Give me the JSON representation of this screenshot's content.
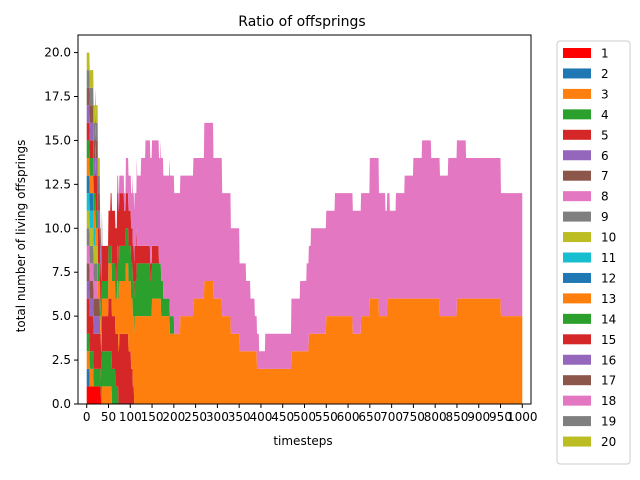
{
  "chart_data": {
    "type": "area",
    "title": "Ratio of offsprings",
    "xlabel": "timesteps",
    "ylabel": "total number of living offsprings",
    "xlim": [
      -20,
      1020
    ],
    "ylim": [
      0,
      21
    ],
    "xticks": [
      0,
      50,
      100,
      150,
      200,
      250,
      300,
      350,
      400,
      450,
      500,
      550,
      600,
      650,
      700,
      750,
      800,
      850,
      900,
      950,
      1000
    ],
    "xtick_labels": [
      "0",
      "50",
      "100",
      "150",
      "200",
      "250",
      "300",
      "350",
      "400",
      "450",
      "500",
      "550",
      "600",
      "650",
      "700",
      "750",
      "800",
      "850",
      "900",
      "950",
      "1000"
    ],
    "yticks": [
      0,
      2.5,
      5,
      7.5,
      10,
      12.5,
      15,
      17.5,
      20
    ],
    "ytick_labels": [
      "0.0",
      "2.5",
      "5.0",
      "7.5",
      "10.0",
      "12.5",
      "15.0",
      "17.5",
      "20.0"
    ],
    "legend_position": "outside right",
    "grid": false,
    "series": [
      {
        "name": "1",
        "color": "#ff0000",
        "points": [
          [
            0,
            1
          ],
          [
            30,
            1
          ],
          [
            35,
            0
          ],
          [
            1000,
            0
          ]
        ]
      },
      {
        "name": "2",
        "color": "#1f77b4",
        "points": [
          [
            0,
            1
          ],
          [
            5,
            1
          ],
          [
            8,
            0
          ],
          [
            1000,
            0
          ]
        ]
      },
      {
        "name": "3",
        "color": "#ff7f0e",
        "points": [
          [
            0,
            1
          ],
          [
            10,
            1
          ],
          [
            20,
            0
          ],
          [
            30,
            0
          ],
          [
            40,
            1
          ],
          [
            55,
            1
          ],
          [
            60,
            0
          ],
          [
            1000,
            0
          ]
        ]
      },
      {
        "name": "4",
        "color": "#2ca02c",
        "points": [
          [
            0,
            1
          ],
          [
            8,
            1
          ],
          [
            30,
            1
          ],
          [
            40,
            2
          ],
          [
            60,
            2
          ],
          [
            70,
            1
          ],
          [
            75,
            0
          ],
          [
            1000,
            0
          ]
        ]
      },
      {
        "name": "5",
        "color": "#d62728",
        "points": [
          [
            0,
            2
          ],
          [
            30,
            2
          ],
          [
            40,
            2
          ],
          [
            60,
            3
          ],
          [
            90,
            4
          ],
          [
            100,
            3
          ],
          [
            110,
            0
          ],
          [
            1000,
            0
          ]
        ]
      },
      {
        "name": "6",
        "color": "#9467bd",
        "points": [
          [
            0,
            1
          ],
          [
            25,
            1
          ],
          [
            35,
            0
          ],
          [
            1000,
            0
          ]
        ]
      },
      {
        "name": "7",
        "color": "#8c564b",
        "points": [
          [
            0,
            1
          ],
          [
            25,
            1
          ],
          [
            35,
            0
          ],
          [
            1000,
            0
          ]
        ]
      },
      {
        "name": "8",
        "color": "#e377c2",
        "points": [
          [
            0,
            1
          ],
          [
            20,
            1
          ],
          [
            30,
            0
          ],
          [
            1000,
            0
          ]
        ]
      },
      {
        "name": "9",
        "color": "#7f7f7f",
        "points": [
          [
            0,
            1
          ],
          [
            20,
            1
          ],
          [
            30,
            0
          ],
          [
            1000,
            0
          ]
        ]
      },
      {
        "name": "10",
        "color": "#bcbd22",
        "points": [
          [
            0,
            1
          ],
          [
            20,
            1
          ],
          [
            30,
            0
          ],
          [
            1000,
            0
          ]
        ]
      },
      {
        "name": "11",
        "color": "#17becf",
        "points": [
          [
            0,
            1
          ],
          [
            15,
            1
          ],
          [
            25,
            0
          ],
          [
            1000,
            0
          ]
        ]
      },
      {
        "name": "12",
        "color": "#1f77b4",
        "points": [
          [
            0,
            1
          ],
          [
            10,
            1
          ],
          [
            20,
            0
          ],
          [
            1000,
            0
          ]
        ]
      },
      {
        "name": "13",
        "color": "#ff7f0e",
        "points": [
          [
            0,
            1
          ],
          [
            40,
            1
          ],
          [
            60,
            2
          ],
          [
            80,
            3
          ],
          [
            100,
            4
          ],
          [
            120,
            5
          ],
          [
            140,
            5
          ],
          [
            160,
            6
          ],
          [
            180,
            5
          ],
          [
            200,
            4
          ],
          [
            230,
            5
          ],
          [
            260,
            6
          ],
          [
            280,
            7
          ],
          [
            300,
            6
          ],
          [
            320,
            5
          ],
          [
            340,
            4
          ],
          [
            360,
            3
          ],
          [
            380,
            3
          ],
          [
            400,
            2
          ],
          [
            420,
            2
          ],
          [
            440,
            2
          ],
          [
            460,
            2
          ],
          [
            480,
            3
          ],
          [
            500,
            3
          ],
          [
            520,
            4
          ],
          [
            540,
            4
          ],
          [
            560,
            5
          ],
          [
            580,
            5
          ],
          [
            600,
            5
          ],
          [
            620,
            4
          ],
          [
            640,
            5
          ],
          [
            660,
            6
          ],
          [
            680,
            5
          ],
          [
            700,
            6
          ],
          [
            720,
            6
          ],
          [
            740,
            6
          ],
          [
            760,
            6
          ],
          [
            780,
            6
          ],
          [
            800,
            6
          ],
          [
            820,
            5
          ],
          [
            840,
            5
          ],
          [
            860,
            6
          ],
          [
            880,
            6
          ],
          [
            900,
            6
          ],
          [
            920,
            6
          ],
          [
            940,
            6
          ],
          [
            960,
            5
          ],
          [
            980,
            5
          ],
          [
            1000,
            5
          ]
        ]
      },
      {
        "name": "14",
        "color": "#2ca02c",
        "points": [
          [
            0,
            1
          ],
          [
            40,
            1
          ],
          [
            60,
            1
          ],
          [
            80,
            2
          ],
          [
            100,
            2
          ],
          [
            130,
            3
          ],
          [
            160,
            2
          ],
          [
            190,
            1
          ],
          [
            210,
            0
          ],
          [
            1000,
            0
          ]
        ]
      },
      {
        "name": "15",
        "color": "#d62728",
        "points": [
          [
            0,
            1
          ],
          [
            40,
            2
          ],
          [
            70,
            3
          ],
          [
            100,
            2
          ],
          [
            130,
            1
          ],
          [
            160,
            1
          ],
          [
            170,
            0
          ],
          [
            1000,
            0
          ]
        ]
      },
      {
        "name": "16",
        "color": "#9467bd",
        "points": [
          [
            0,
            1
          ],
          [
            30,
            1
          ],
          [
            40,
            0
          ],
          [
            1000,
            0
          ]
        ]
      },
      {
        "name": "17",
        "color": "#8c564b",
        "points": [
          [
            0,
            1
          ],
          [
            30,
            1
          ],
          [
            40,
            0
          ],
          [
            1000,
            0
          ]
        ]
      },
      {
        "name": "18",
        "color": "#e377c2",
        "points": [
          [
            0,
            0
          ],
          [
            60,
            0
          ],
          [
            80,
            1
          ],
          [
            100,
            2
          ],
          [
            120,
            4
          ],
          [
            140,
            6
          ],
          [
            160,
            6
          ],
          [
            180,
            7
          ],
          [
            200,
            8
          ],
          [
            220,
            8
          ],
          [
            240,
            8
          ],
          [
            260,
            8
          ],
          [
            280,
            9
          ],
          [
            300,
            8
          ],
          [
            320,
            7
          ],
          [
            340,
            6
          ],
          [
            360,
            5
          ],
          [
            380,
            3
          ],
          [
            400,
            1
          ],
          [
            420,
            2
          ],
          [
            440,
            2
          ],
          [
            460,
            2
          ],
          [
            480,
            3
          ],
          [
            500,
            4
          ],
          [
            520,
            6
          ],
          [
            540,
            6
          ],
          [
            560,
            6
          ],
          [
            580,
            7
          ],
          [
            600,
            7
          ],
          [
            620,
            7
          ],
          [
            640,
            7
          ],
          [
            660,
            8
          ],
          [
            680,
            7
          ],
          [
            700,
            5
          ],
          [
            720,
            6
          ],
          [
            740,
            7
          ],
          [
            760,
            8
          ],
          [
            780,
            9
          ],
          [
            800,
            8
          ],
          [
            820,
            8
          ],
          [
            840,
            9
          ],
          [
            860,
            9
          ],
          [
            880,
            8
          ],
          [
            900,
            8
          ],
          [
            920,
            8
          ],
          [
            940,
            8
          ],
          [
            960,
            7
          ],
          [
            980,
            7
          ],
          [
            1000,
            7
          ]
        ]
      },
      {
        "name": "19",
        "color": "#7f7f7f",
        "points": [
          [
            0,
            1
          ],
          [
            25,
            1
          ],
          [
            35,
            0
          ],
          [
            1000,
            0
          ]
        ]
      },
      {
        "name": "20",
        "color": "#bcbd22",
        "points": [
          [
            0,
            1
          ],
          [
            25,
            1
          ],
          [
            35,
            0
          ],
          [
            1000,
            0
          ]
        ]
      }
    ]
  }
}
